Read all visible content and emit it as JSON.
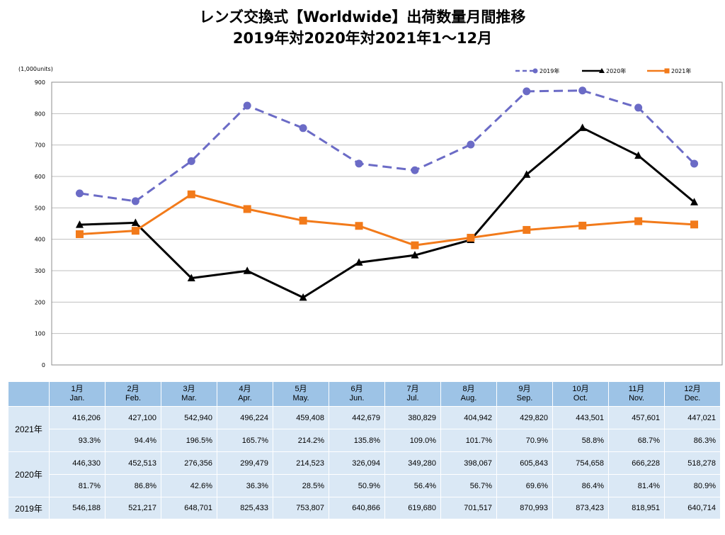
{
  "title_line1": "レンズ交換式【Worldwide】出荷数量月間推移",
  "title_line2": "2019年対2020年対2021年1～12月",
  "chart_data": {
    "type": "line",
    "unit_label": "(1,000units)",
    "ylim": [
      0,
      900
    ],
    "yticks": [
      "0",
      "100",
      "200",
      "300",
      "400",
      "500",
      "600",
      "700",
      "800",
      "900"
    ],
    "legend_position": "top-right",
    "categories": [
      "1月",
      "2月",
      "3月",
      "4月",
      "5月",
      "6月",
      "7月",
      "8月",
      "9月",
      "10月",
      "11月",
      "12月"
    ],
    "series": [
      {
        "name": "2019年",
        "color": "#6b6bc6",
        "marker": "circle",
        "dash": true,
        "values": [
          546.188,
          521.217,
          648.701,
          825.433,
          753.807,
          640.866,
          619.68,
          701.517,
          870.993,
          873.423,
          818.951,
          640.714
        ]
      },
      {
        "name": "2020年",
        "color": "#000000",
        "marker": "triangle",
        "dash": false,
        "values": [
          446.33,
          452.513,
          276.356,
          299.479,
          214.523,
          326.094,
          349.28,
          398.067,
          605.843,
          754.658,
          666.228,
          518.278
        ]
      },
      {
        "name": "2021年",
        "color": "#f27a1a",
        "marker": "square",
        "dash": false,
        "values": [
          416.206,
          427.1,
          542.94,
          496.224,
          459.408,
          442.679,
          380.829,
          404.942,
          429.82,
          443.501,
          457.601,
          447.021
        ]
      }
    ]
  },
  "table": {
    "months": [
      {
        "jp": "1月",
        "en": "Jan."
      },
      {
        "jp": "2月",
        "en": "Feb."
      },
      {
        "jp": "3月",
        "en": "Mar."
      },
      {
        "jp": "4月",
        "en": "Apr."
      },
      {
        "jp": "5月",
        "en": "May."
      },
      {
        "jp": "6月",
        "en": "Jun."
      },
      {
        "jp": "7月",
        "en": "Jul."
      },
      {
        "jp": "8月",
        "en": "Aug."
      },
      {
        "jp": "9月",
        "en": "Sep."
      },
      {
        "jp": "10月",
        "en": "Oct."
      },
      {
        "jp": "11月",
        "en": "Nov."
      },
      {
        "jp": "12月",
        "en": "Dec."
      }
    ],
    "rows": [
      {
        "label": "2021年",
        "values": [
          "416,206",
          "427,100",
          "542,940",
          "496,224",
          "459,408",
          "442,679",
          "380,829",
          "404,942",
          "429,820",
          "443,501",
          "457,601",
          "447,021"
        ],
        "ratios": [
          "93.3%",
          "94.4%",
          "196.5%",
          "165.7%",
          "214.2%",
          "135.8%",
          "109.0%",
          "101.7%",
          "70.9%",
          "58.8%",
          "68.7%",
          "86.3%"
        ]
      },
      {
        "label": "2020年",
        "values": [
          "446,330",
          "452,513",
          "276,356",
          "299,479",
          "214,523",
          "326,094",
          "349,280",
          "398,067",
          "605,843",
          "754,658",
          "666,228",
          "518,278"
        ],
        "ratios": [
          "81.7%",
          "86.8%",
          "42.6%",
          "36.3%",
          "28.5%",
          "50.9%",
          "56.4%",
          "56.7%",
          "69.6%",
          "86.4%",
          "81.4%",
          "80.9%"
        ]
      },
      {
        "label": "2019年",
        "values": [
          "546,188",
          "521,217",
          "648,701",
          "825,433",
          "753,807",
          "640,866",
          "619,680",
          "701,517",
          "870,993",
          "873,423",
          "818,951",
          "640,714"
        ]
      }
    ]
  }
}
